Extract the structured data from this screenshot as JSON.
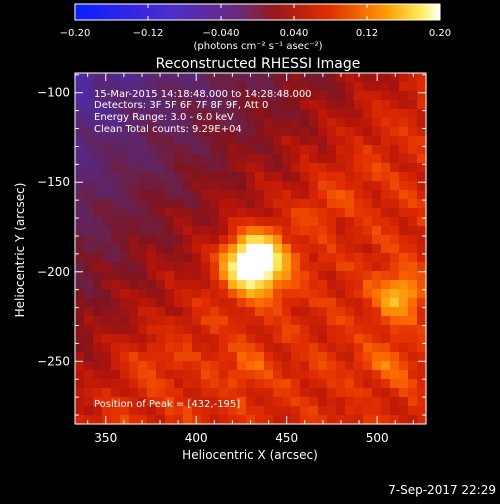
{
  "chart_data": {
    "type": "heatmap",
    "title": "Reconstructed RHESSI Image",
    "xlabel": "Heliocentric X (arcsec)",
    "ylabel": "Heliocentric Y (arcsec)",
    "xlim": [
      333,
      527
    ],
    "ylim": [
      -285,
      -89
    ],
    "x_ticks": [
      350,
      400,
      450,
      500
    ],
    "x_tick_labels": [
      "350",
      "400",
      "450",
      "500"
    ],
    "y_ticks": [
      -100,
      -150,
      -200,
      -250
    ],
    "y_tick_labels": [
      "−100",
      "−150",
      "−200",
      "−250"
    ],
    "colorbar": {
      "vmin": -0.2,
      "vmax": 0.2,
      "ticks": [
        -0.2,
        -0.12,
        -0.04,
        0.04,
        0.12,
        0.2
      ],
      "tick_labels": [
        "−0.20",
        "−0.12",
        "−0.040",
        "0.040",
        "0.12",
        "0.20"
      ],
      "unit_label": "(photons cm⁻² s⁻¹ asec⁻²)",
      "colormap": "rainbow-blue-purple-red-yellow-white"
    },
    "annotations": {
      "time_range": "15-Mar-2015 14:18:48.000 to 14:28:48.000",
      "detectors": "Detectors: 3F 5F 6F 7F 8F 9F, Att 0",
      "energy": "Energy Range: 3.0 - 6.0 keV",
      "clean": "Clean     Total counts: 9.29E+04",
      "peak": "Position of Peak = [432,-195]"
    },
    "sources": [
      {
        "x": 432,
        "y": -195,
        "peak": 0.2
      },
      {
        "x": 512,
        "y": -213,
        "peak": 0.09
      },
      {
        "x": 505,
        "y": -250,
        "peak": 0.05
      },
      {
        "x": 428,
        "y": -253,
        "peak": 0.045
      },
      {
        "x": 372,
        "y": -250,
        "peak": 0.04
      },
      {
        "x": 470,
        "y": -160,
        "peak": 0.03
      }
    ],
    "background_level": 0.06,
    "background_minimum": -0.04
  },
  "footer": {
    "date": "7-Sep-2017 22:29"
  }
}
